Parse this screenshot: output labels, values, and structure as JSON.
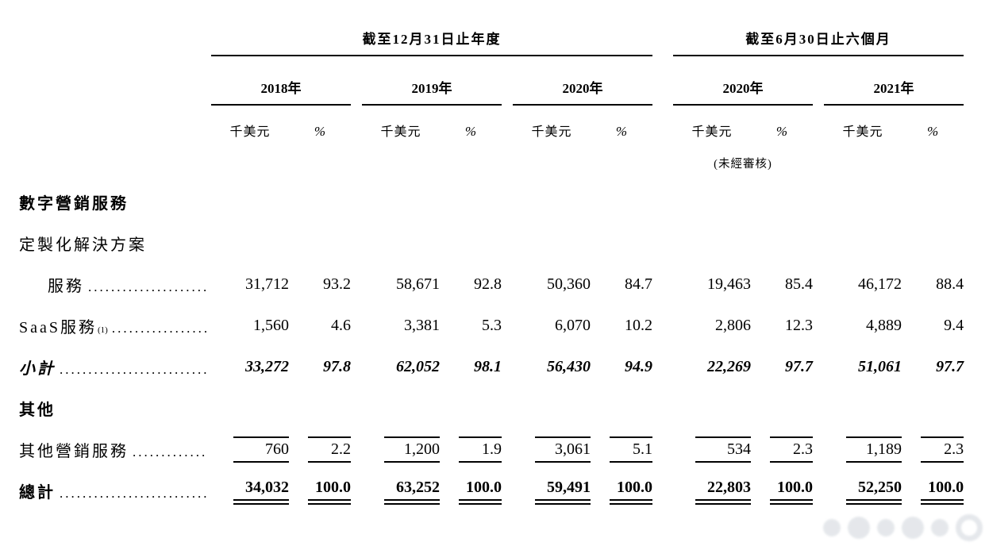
{
  "table": {
    "leader_dots": "....................................................",
    "col_groups": [
      {
        "label": "截至12月31日止年度",
        "years": [
          "2018年",
          "2019年",
          "2020年"
        ]
      },
      {
        "label": "截至6月30日止六個月",
        "years": [
          "2020年",
          "2021年"
        ]
      }
    ],
    "unit_label": "千美元",
    "pct_label": "%",
    "unaudited_note": "(未經審核)",
    "rows": [
      {
        "style": "heading",
        "label": "數字營銷服務"
      },
      {
        "style": "plain",
        "label": "定製化解決方案"
      },
      {
        "style": "data",
        "label": "服務",
        "indent": true,
        "dots": true,
        "values": [
          "31,712",
          "93.2",
          "58,671",
          "92.8",
          "50,360",
          "84.7",
          "19,463",
          "85.4",
          "46,172",
          "88.4"
        ]
      },
      {
        "style": "data",
        "label": "SaaS服務",
        "sup": "(1)",
        "dots": true,
        "values": [
          "1,560",
          "4.6",
          "3,381",
          "5.3",
          "6,070",
          "10.2",
          "2,806",
          "12.3",
          "4,889",
          "9.4"
        ]
      },
      {
        "style": "subtotal",
        "label": "小計",
        "dots": true,
        "values": [
          "33,272",
          "97.8",
          "62,052",
          "98.1",
          "56,430",
          "94.9",
          "22,269",
          "97.7",
          "51,061",
          "97.7"
        ]
      },
      {
        "style": "heading",
        "label": "其他"
      },
      {
        "style": "data",
        "label": "其他營銷服務",
        "dots": true,
        "rules": "box",
        "values": [
          "760",
          "2.2",
          "1,200",
          "1.9",
          "3,061",
          "5.1",
          "534",
          "2.3",
          "1,189",
          "2.3"
        ]
      },
      {
        "style": "total",
        "label": "總計",
        "dots": true,
        "rules": "double",
        "values": [
          "34,032",
          "100.0",
          "63,252",
          "100.0",
          "59,491",
          "100.0",
          "22,803",
          "100.0",
          "52,250",
          "100.0"
        ]
      }
    ]
  }
}
